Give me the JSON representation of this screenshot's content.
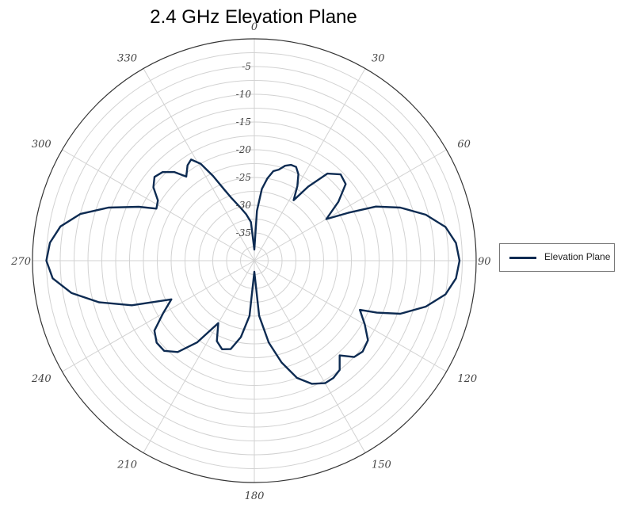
{
  "chart_data": {
    "type": "polar-line",
    "title": "2.4 GHz Elevation Plane",
    "angle_ticks": [
      "0",
      "30",
      "60",
      "90",
      "120",
      "150",
      "180",
      "210",
      "240",
      "270",
      "300",
      "330"
    ],
    "angle_tick_values": [
      0,
      30,
      60,
      90,
      120,
      150,
      180,
      210,
      240,
      270,
      300,
      330
    ],
    "radial_ticks": [
      "0",
      "-5",
      "-10",
      "-15",
      "-20",
      "-25",
      "-30",
      "-35"
    ],
    "radial_tick_values": [
      0,
      -5,
      -10,
      -15,
      -20,
      -25,
      -30,
      -35
    ],
    "r_range": [
      -40,
      0
    ],
    "grid": true,
    "legend_position": "right",
    "series": [
      {
        "name": "Elevation Plane",
        "color": "#0d2b52",
        "points": [
          [
            0,
            -38
          ],
          [
            3,
            -31
          ],
          [
            6,
            -27
          ],
          [
            9,
            -25
          ],
          [
            12,
            -23.5
          ],
          [
            15,
            -23
          ],
          [
            18,
            -22
          ],
          [
            21,
            -21.5
          ],
          [
            24,
            -21.5
          ],
          [
            27,
            -22.5
          ],
          [
            30,
            -24.5
          ],
          [
            33,
            -27
          ],
          [
            36,
            -23.5
          ],
          [
            40,
            -19.5
          ],
          [
            45,
            -18
          ],
          [
            50,
            -18.5
          ],
          [
            55,
            -21.5
          ],
          [
            60,
            -25
          ],
          [
            63,
            -21
          ],
          [
            66,
            -16
          ],
          [
            70,
            -12
          ],
          [
            75,
            -8
          ],
          [
            80,
            -5
          ],
          [
            85,
            -3.5
          ],
          [
            90,
            -3
          ],
          [
            95,
            -3.5
          ],
          [
            100,
            -5
          ],
          [
            105,
            -8
          ],
          [
            110,
            -12
          ],
          [
            113,
            -16
          ],
          [
            115,
            -19
          ],
          [
            120,
            -17
          ],
          [
            125,
            -15
          ],
          [
            130,
            -14.5
          ],
          [
            134,
            -15
          ],
          [
            138,
            -17
          ],
          [
            142,
            -15
          ],
          [
            146,
            -14.5
          ],
          [
            150,
            -14.5
          ],
          [
            155,
            -15.5
          ],
          [
            160,
            -17.5
          ],
          [
            165,
            -21
          ],
          [
            170,
            -25
          ],
          [
            175,
            -30
          ],
          [
            180,
            -38
          ],
          [
            185,
            -30
          ],
          [
            190,
            -26
          ],
          [
            195,
            -23.5
          ],
          [
            200,
            -23
          ],
          [
            205,
            -24
          ],
          [
            210,
            -27
          ],
          [
            215,
            -22
          ],
          [
            220,
            -18.5
          ],
          [
            225,
            -17
          ],
          [
            230,
            -17
          ],
          [
            235,
            -18
          ],
          [
            240,
            -21
          ],
          [
            245,
            -23.5
          ],
          [
            250,
            -16.5
          ],
          [
            255,
            -11
          ],
          [
            260,
            -6.5
          ],
          [
            265,
            -3.5
          ],
          [
            270,
            -2.5
          ],
          [
            275,
            -3
          ],
          [
            280,
            -4.5
          ],
          [
            285,
            -7.5
          ],
          [
            290,
            -12
          ],
          [
            295,
            -17
          ],
          [
            298,
            -20
          ],
          [
            302,
            -19.5
          ],
          [
            306,
            -17.5
          ],
          [
            310,
            -16.5
          ],
          [
            314,
            -17
          ],
          [
            318,
            -18.5
          ],
          [
            321,
            -20.5
          ],
          [
            325,
            -19
          ],
          [
            328,
            -18.5
          ],
          [
            331,
            -20
          ],
          [
            334,
            -23
          ],
          [
            337,
            -26
          ],
          [
            340,
            -28
          ],
          [
            345,
            -30
          ],
          [
            350,
            -31.5
          ],
          [
            355,
            -33
          ],
          [
            360,
            -38
          ]
        ]
      }
    ]
  }
}
